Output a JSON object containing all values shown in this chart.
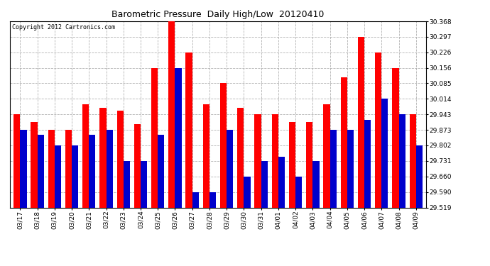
{
  "title": "Barometric Pressure  Daily High/Low  20120410",
  "copyright": "Copyright 2012 Cartronics.com",
  "dates": [
    "03/17",
    "03/18",
    "03/19",
    "03/20",
    "03/21",
    "03/22",
    "03/23",
    "03/24",
    "03/25",
    "03/26",
    "03/27",
    "03/28",
    "03/29",
    "03/30",
    "03/31",
    "04/01",
    "04/02",
    "04/03",
    "04/04",
    "04/05",
    "04/06",
    "04/07",
    "04/08",
    "04/09"
  ],
  "highs": [
    29.943,
    29.91,
    29.873,
    29.873,
    29.99,
    29.975,
    29.96,
    29.9,
    30.156,
    30.368,
    30.226,
    29.99,
    30.085,
    29.975,
    29.943,
    29.943,
    29.91,
    29.91,
    29.99,
    30.114,
    30.297,
    30.226,
    30.156,
    29.943
  ],
  "lows": [
    29.873,
    29.85,
    29.802,
    29.802,
    29.85,
    29.873,
    29.731,
    29.731,
    29.85,
    30.156,
    29.59,
    29.59,
    29.873,
    29.66,
    29.731,
    29.75,
    29.66,
    29.731,
    29.873,
    29.873,
    29.92,
    30.014,
    29.943,
    29.802
  ],
  "high_color": "#ff0000",
  "low_color": "#0000cc",
  "bg_color": "#ffffff",
  "grid_color": "#aaaaaa",
  "ylim_min": 29.519,
  "ylim_max": 30.368,
  "yticks": [
    29.519,
    29.59,
    29.66,
    29.731,
    29.802,
    29.873,
    29.943,
    30.014,
    30.085,
    30.156,
    30.226,
    30.297,
    30.368
  ],
  "title_fontsize": 9,
  "copyright_fontsize": 6,
  "tick_fontsize": 6.5
}
